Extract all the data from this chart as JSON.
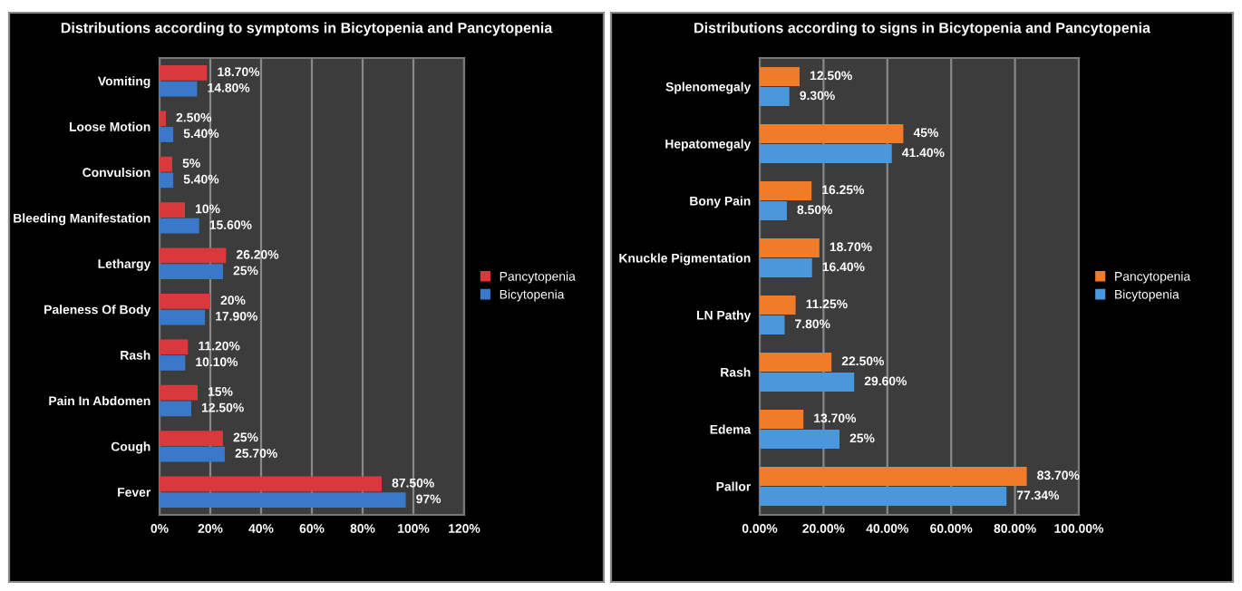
{
  "chart_data": [
    {
      "type": "bar",
      "orientation": "horizontal",
      "title": "Distributions according to symptoms in Bicytopenia and Pancytopenia",
      "categories": [
        "Vomiting",
        "Loose Motion",
        "Convulsion",
        "Bleeding Manifestation",
        "Lethargy",
        "Paleness Of Body",
        "Rash",
        "Pain In Abdomen",
        "Cough",
        "Fever"
      ],
      "series": [
        {
          "name": "Pancytopenia",
          "color": "#d9393c",
          "values": [
            18.7,
            2.5,
            5,
            10,
            26.2,
            20,
            11.2,
            15,
            25,
            87.5
          ],
          "value_labels": [
            "18.70%",
            "2.50%",
            "5%",
            "10%",
            "26.20%",
            "20%",
            "11.20%",
            "15%",
            "25%",
            "87.50%"
          ]
        },
        {
          "name": "Bicytopenia",
          "color": "#3a78c9",
          "values": [
            14.8,
            5.4,
            5.4,
            15.6,
            25,
            17.9,
            10.1,
            12.5,
            25.7,
            97
          ],
          "value_labels": [
            "14.80%",
            "5.40%",
            "5.40%",
            "15.60%",
            "25%",
            "17.90%",
            "10.10%",
            "12.50%",
            "25.70%",
            "97%"
          ]
        }
      ],
      "xlim": [
        0,
        120
      ],
      "xticks": [
        {
          "value": 0,
          "label": "0%"
        },
        {
          "value": 20,
          "label": "20%"
        },
        {
          "value": 40,
          "label": "40%"
        },
        {
          "value": 60,
          "label": "60%"
        },
        {
          "value": 80,
          "label": "80%"
        },
        {
          "value": 100,
          "label": "100%"
        },
        {
          "value": 120,
          "label": "120%"
        }
      ],
      "grid": "x",
      "legend": "right"
    },
    {
      "type": "bar",
      "orientation": "horizontal",
      "title": "Distributions according to signs in Bicytopenia and Pancytopenia",
      "categories": [
        "Splenomegaly",
        "Hepatomegaly",
        "Bony Pain",
        "Knuckle Pigmentation",
        "LN Pathy",
        "Rash",
        "Edema",
        "Pallor"
      ],
      "series": [
        {
          "name": "Pancytopenia",
          "color": "#f07c2a",
          "values": [
            12.5,
            45,
            16.25,
            18.7,
            11.25,
            22.5,
            13.7,
            83.7
          ],
          "value_labels": [
            "12.50%",
            "45%",
            "16.25%",
            "18.70%",
            "11.25%",
            "22.50%",
            "13.70%",
            "83.70%"
          ]
        },
        {
          "name": "Bicytopenia",
          "color": "#4a98db",
          "values": [
            9.3,
            41.4,
            8.5,
            16.4,
            7.8,
            29.6,
            25,
            77.34
          ],
          "value_labels": [
            "9.30%",
            "41.40%",
            "8.50%",
            "16.40%",
            "7.80%",
            "29.60%",
            "25%",
            "77.34%"
          ]
        }
      ],
      "xlim": [
        0,
        100
      ],
      "xticks": [
        {
          "value": 0,
          "label": "0.00%"
        },
        {
          "value": 20,
          "label": "20.00%"
        },
        {
          "value": 40,
          "label": "40.00%"
        },
        {
          "value": 60,
          "label": "60.00%"
        },
        {
          "value": 80,
          "label": "80.00%"
        },
        {
          "value": 100,
          "label": "100.00%"
        }
      ],
      "grid": "x",
      "legend": "right"
    }
  ]
}
